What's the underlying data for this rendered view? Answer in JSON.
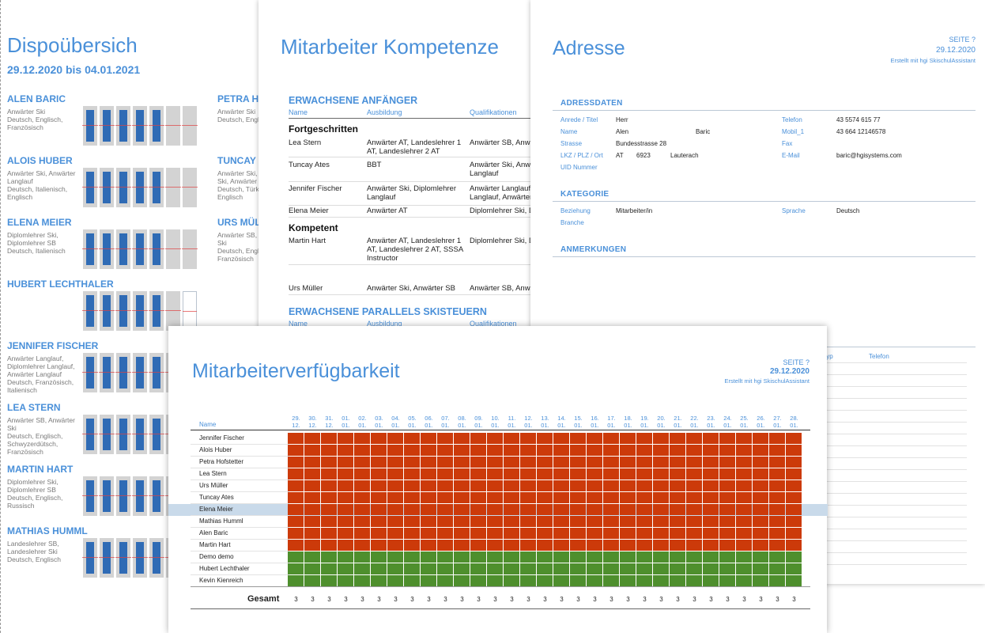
{
  "dispo": {
    "title": "Dispoübersich",
    "date_range": "29.12.2020 bis 04.01.2021",
    "entries": [
      {
        "name": "ALEN BARIC",
        "quals": "Anwärter Ski\nDeutsch, Englisch, Französisch"
      },
      {
        "name": "ALOIS HUBER",
        "quals": "Anwärter Ski, Anwärter Langlauf\nDeutsch, Italienisch, Englisch"
      },
      {
        "name": "ELENA MEIER",
        "quals": "Diplomlehrer Ski, Diplomlehrer SB\nDeutsch, Italienisch"
      },
      {
        "name": "HUBERT LECHTHALER",
        "quals": ""
      },
      {
        "name": "JENNIFER FISCHER",
        "quals": "Anwärter Langlauf, Diplomlehrer Langlauf, Anwärter Langlauf\nDeutsch, Französisch, Italienisch"
      },
      {
        "name": "LEA STERN",
        "quals": "Anwärter SB, Anwärter Ski\nDeutsch, Englisch, Schwyzerdütsch, Französisch"
      },
      {
        "name": "MARTIN HART",
        "quals": "Diplomlehrer Ski, Diplomlehrer SB\nDeutsch, Englisch, Russisch"
      },
      {
        "name": "MATHIAS HUMML",
        "quals": "Landeslehrer SB, Landeslehrer Ski\nDeutsch, Englisch"
      }
    ],
    "entries_right": [
      {
        "name": "PETRA H",
        "quals": "Anwärter Ski\nDeutsch, Engli"
      },
      {
        "name": "TUNCAY",
        "quals": "Anwärter Ski, A\nSki, Anwärter S\nDeutsch, Türki\nEnglisch"
      },
      {
        "name": "URS MÜL",
        "quals": "Anwärter SB, A\nSki\nDeutsch, Engli\nFranzösisch"
      }
    ]
  },
  "kompetenzen": {
    "title": "Mitarbeiter Kompetenze",
    "section1": "ERWACHSENE ANFÄNGER",
    "section2": "ERWACHSENE PARALLELS SKISTEUERN",
    "headers": {
      "name": "Name",
      "ausbildung": "Ausbildung",
      "qualifikationen": "Qualifikationen"
    },
    "level1": "Fortgeschritten",
    "level2": "Kompetent",
    "rows_level1": [
      {
        "name": "Lea Stern",
        "ausbildung": "Anwärter AT, Landeslehrer 1 AT, Landeslehrer 2 AT",
        "qual": "Anwärter SB, Anwä"
      },
      {
        "name": "Tuncay Ates",
        "ausbildung": "BBT",
        "qual": "Anwärter Ski, Anwä\nLanglauf"
      },
      {
        "name": "Jennifer Fischer",
        "ausbildung": "Anwärter Ski, Diplomlehrer Langlauf",
        "qual": "Anwärter Langlauf,\nLanglauf, Anwärter"
      },
      {
        "name": "Elena Meier",
        "ausbildung": "Anwärter AT",
        "qual": "Diplomlehrer Ski, D"
      }
    ],
    "rows_level2": [
      {
        "name": "Martin Hart",
        "ausbildung": "Anwärter AT, Landeslehrer 1 AT, Landeslehrer 2 AT, SSSA Instructor",
        "qual": "Diplomlehrer Ski, D"
      },
      {
        "name": "Urs Müller",
        "ausbildung": "Anwärter Ski, Anwärter SB",
        "qual": "Anwärter SB, Anwä"
      }
    ]
  },
  "adresse": {
    "title": "Adresse",
    "seite": "SEITE   ?",
    "date": "29.12.2020",
    "created": "Erstellt mit hgi SkischulAssistant",
    "section_adressdaten": "ADRESSDATEN",
    "section_kategorie": "KATEGORIE",
    "section_anmerkungen": "ANMERKUNGEN",
    "labels": {
      "anrede": "Anrede / Titel",
      "name": "Name",
      "strasse": "Strasse",
      "lkz": "LKZ / PLZ / Ort",
      "uid": "UID Nummer",
      "telefon": "Telefon",
      "mobil": "Mobil_1",
      "fax": "Fax",
      "email": "E-Mail",
      "beziehung": "Beziehung",
      "branche": "Branche",
      "sprache": "Sprache"
    },
    "values": {
      "anrede": "Herr",
      "vorname": "Alen",
      "nachname": "Baric",
      "strasse": "Bundesstrasse 28",
      "lkz": "AT",
      "plz": "6923",
      "ort": "Lauterach",
      "telefon": "43 5574 615 77",
      "mobil": "43 664 12146578",
      "email": "baric@hgisystems.com",
      "beziehung": "Mitarbeiter/in",
      "sprache": "Deutsch"
    },
    "table_headers": [
      "typ",
      "Telefon"
    ]
  },
  "verfuegbarkeit": {
    "title": "Mitarbeiterverfügbarkeit",
    "seite": "SEITE   ?",
    "date": "29.12.2020",
    "created": "Erstellt mit hgi SkischulAssistant",
    "name_header": "Name",
    "dates": [
      "29.\n12.",
      "30.\n12.",
      "31.\n12.",
      "01.\n01.",
      "02.\n01.",
      "03.\n01.",
      "04.\n01.",
      "05.\n01.",
      "06.\n01.",
      "07.\n01.",
      "08.\n01.",
      "09.\n01.",
      "10.\n01.",
      "11.\n01.",
      "12.\n01.",
      "13.\n01.",
      "14.\n01.",
      "15.\n01.",
      "16.\n01.",
      "17.\n01.",
      "18.\n01.",
      "19.\n01.",
      "20.\n01.",
      "21.\n01.",
      "22.\n01.",
      "23.\n01.",
      "24.\n01.",
      "25.\n01.",
      "26.\n01.",
      "27.\n01.",
      "28.\n01."
    ],
    "rows": [
      {
        "name": "Jennifer Fischer",
        "status": "unavailable"
      },
      {
        "name": "Alois Huber",
        "status": "unavailable"
      },
      {
        "name": "Petra Hofstetter",
        "status": "unavailable"
      },
      {
        "name": "Lea Stern",
        "status": "unavailable"
      },
      {
        "name": "Urs Müller",
        "status": "unavailable"
      },
      {
        "name": "Tuncay Ates",
        "status": "unavailable"
      },
      {
        "name": "Elena Meier",
        "status": "unavailable",
        "selected": true
      },
      {
        "name": "Mathias Humml",
        "status": "unavailable"
      },
      {
        "name": "Alen Baric",
        "status": "unavailable"
      },
      {
        "name": "Martin Hart",
        "status": "unavailable"
      },
      {
        "name": "Demo demo",
        "status": "available"
      },
      {
        "name": "Hubert Lechthaler",
        "status": "available"
      },
      {
        "name": "Kevin Kienreich",
        "status": "available"
      }
    ],
    "gesamt_label": "Gesamt",
    "totals": [
      "3",
      "3",
      "3",
      "3",
      "3",
      "3",
      "3",
      "3",
      "3",
      "3",
      "3",
      "3",
      "3",
      "3",
      "3",
      "3",
      "3",
      "3",
      "3",
      "3",
      "3",
      "3",
      "3",
      "3",
      "3",
      "3",
      "3",
      "3",
      "3",
      "3",
      "3"
    ],
    "colors": {
      "unavailable": "#cc3a0a",
      "available": "#4e8f2d",
      "accent": "#4a90d9"
    }
  }
}
